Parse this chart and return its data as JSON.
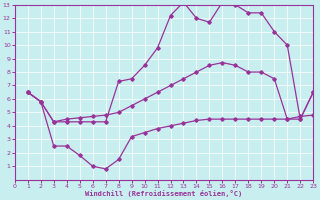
{
  "bg_color": "#c8eef0",
  "line_color": "#993399",
  "xlabel": "Windchill (Refroidissement éolien,°C)",
  "xlim": [
    0,
    23
  ],
  "ylim": [
    0,
    13
  ],
  "xticks": [
    0,
    1,
    2,
    3,
    4,
    5,
    6,
    7,
    8,
    9,
    10,
    11,
    12,
    13,
    14,
    15,
    16,
    17,
    18,
    19,
    20,
    21,
    22,
    23
  ],
  "yticks": [
    1,
    2,
    3,
    4,
    5,
    6,
    7,
    8,
    9,
    10,
    11,
    12,
    13
  ],
  "curve1_x": [
    1,
    2,
    3,
    4,
    5,
    6,
    7,
    8,
    9,
    10,
    11,
    12,
    13,
    14,
    15,
    16,
    17,
    18,
    19,
    20,
    21,
    22,
    23
  ],
  "curve1_y": [
    6.5,
    5.8,
    4.3,
    4.3,
    4.3,
    4.3,
    4.3,
    7.3,
    7.5,
    8.5,
    9.8,
    12.2,
    13.2,
    12.0,
    11.7,
    13.2,
    13.0,
    12.4,
    12.4,
    11.0,
    10.0,
    4.5,
    6.5
  ],
  "curve2_x": [
    1,
    2,
    3,
    4,
    5,
    6,
    7,
    8,
    9,
    10,
    11,
    12,
    13,
    14,
    15,
    16,
    17,
    18,
    19,
    20,
    21,
    22,
    23
  ],
  "curve2_y": [
    6.5,
    5.8,
    4.3,
    4.5,
    4.6,
    4.7,
    4.8,
    5.0,
    5.5,
    6.0,
    6.5,
    7.0,
    7.5,
    8.0,
    8.5,
    8.7,
    8.5,
    8.0,
    8.0,
    7.5,
    4.5,
    4.5,
    6.5
  ],
  "curve3_x": [
    1,
    2,
    3,
    4,
    5,
    6,
    7,
    8,
    9,
    10,
    11,
    12,
    13,
    14,
    15,
    16,
    17,
    18,
    19,
    20,
    21,
    22,
    23
  ],
  "curve3_y": [
    6.5,
    5.8,
    2.5,
    2.5,
    1.8,
    1.0,
    0.8,
    1.5,
    3.2,
    3.5,
    3.8,
    4.0,
    4.2,
    4.4,
    4.5,
    4.5,
    4.5,
    4.5,
    4.5,
    4.5,
    4.5,
    4.7,
    4.8
  ]
}
